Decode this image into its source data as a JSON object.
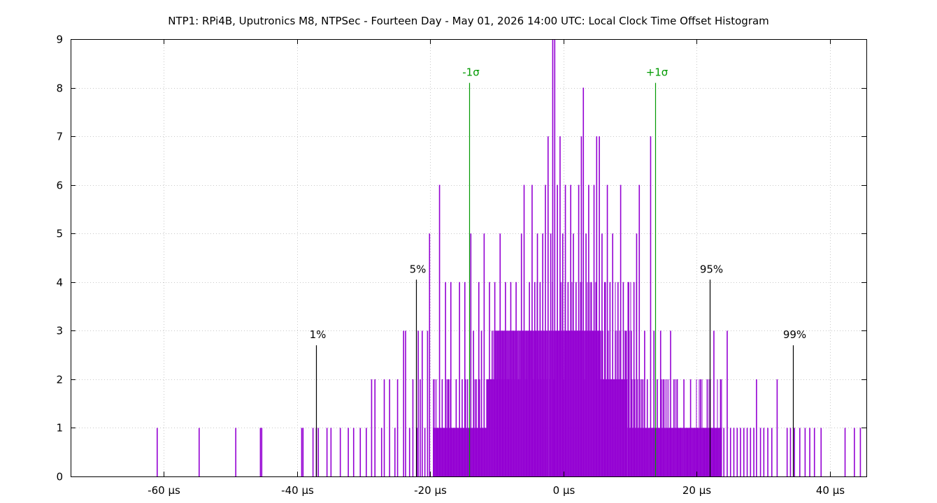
{
  "chart_data": {
    "type": "bar",
    "title": "NTP1: RPi4B, Uputronics M8, NTPSec - Fourteen Day - May 01, 2026 14:00 UTC: Local Clock Time Offset Histogram",
    "xlabel": "",
    "ylabel": "",
    "xlim": [
      -74,
      45.5
    ],
    "ylim": [
      0,
      9
    ],
    "grid": true,
    "legend": "none",
    "bar_color": "#9400d3",
    "x_ticks": [
      {
        "value": -60,
        "label": "-60 µs"
      },
      {
        "value": -40,
        "label": "-40 µs"
      },
      {
        "value": -20,
        "label": "-20 µs"
      },
      {
        "value": 0,
        "label": "0 µs"
      },
      {
        "value": 20,
        "label": "20 µs"
      },
      {
        "value": 40,
        "label": "40 µs"
      }
    ],
    "y_ticks": [
      {
        "value": 0,
        "label": "0"
      },
      {
        "value": 1,
        "label": "1"
      },
      {
        "value": 2,
        "label": "2"
      },
      {
        "value": 3,
        "label": "3"
      },
      {
        "value": 4,
        "label": "4"
      },
      {
        "value": 5,
        "label": "5"
      },
      {
        "value": 6,
        "label": "6"
      },
      {
        "value": 7,
        "label": "7"
      },
      {
        "value": 8,
        "label": "8"
      },
      {
        "value": 9,
        "label": "9"
      }
    ],
    "markers": [
      {
        "label": "1%",
        "x": -37.1,
        "height": 2.7,
        "color": "#000000"
      },
      {
        "label": "5%",
        "x": -22.1,
        "height": 4.05,
        "color": "#000000"
      },
      {
        "label": "-1σ",
        "x": -14.1,
        "height": 8.1,
        "color": "#009900"
      },
      {
        "label": "+1σ",
        "x": 13.8,
        "height": 8.1,
        "color": "#009900"
      },
      {
        "label": "95%",
        "x": 22.0,
        "height": 4.05,
        "color": "#000000"
      },
      {
        "label": "99%",
        "x": 34.5,
        "height": 2.7,
        "color": "#000000"
      }
    ],
    "bars": [
      {
        "x": -61.0,
        "y": 1
      },
      {
        "x": -54.7,
        "y": 1
      },
      {
        "x": -49.2,
        "y": 1
      },
      {
        "x": -45.5,
        "y": 1
      },
      {
        "x": -45.3,
        "y": 1
      },
      {
        "x": -39.3,
        "y": 1
      },
      {
        "x": -39.1,
        "y": 1
      },
      {
        "x": -37.6,
        "y": 1
      },
      {
        "x": -37.1,
        "y": 1
      },
      {
        "x": -36.8,
        "y": 1
      },
      {
        "x": -35.5,
        "y": 1
      },
      {
        "x": -34.9,
        "y": 1
      },
      {
        "x": -33.5,
        "y": 1
      },
      {
        "x": -32.3,
        "y": 1
      },
      {
        "x": -31.5,
        "y": 1
      },
      {
        "x": -30.5,
        "y": 1
      },
      {
        "x": -29.6,
        "y": 1
      },
      {
        "x": -28.8,
        "y": 2
      },
      {
        "x": -28.3,
        "y": 2
      },
      {
        "x": -27.3,
        "y": 1
      },
      {
        "x": -26.9,
        "y": 2
      },
      {
        "x": -26.1,
        "y": 2
      },
      {
        "x": -25.3,
        "y": 1
      },
      {
        "x": -24.9,
        "y": 2
      },
      {
        "x": -24.0,
        "y": 3
      },
      {
        "x": -23.7,
        "y": 3
      },
      {
        "x": -23.1,
        "y": 1
      },
      {
        "x": -22.6,
        "y": 2
      },
      {
        "x": -22.0,
        "y": 1
      },
      {
        "x": -21.8,
        "y": 3
      },
      {
        "x": -21.5,
        "y": 2
      },
      {
        "x": -21.2,
        "y": 3
      },
      {
        "x": -20.8,
        "y": 1
      },
      {
        "x": -20.4,
        "y": 3
      },
      {
        "x": -20.1,
        "y": 5
      },
      {
        "x": -19.5,
        "y": 2
      },
      {
        "x": -19.0,
        "y": 1
      },
      {
        "x": -18.6,
        "y": 6
      },
      {
        "x": -18.2,
        "y": 2
      },
      {
        "x": -17.7,
        "y": 4
      },
      {
        "x": -17.3,
        "y": 2
      },
      {
        "x": -16.9,
        "y": 4
      },
      {
        "x": -16.5,
        "y": 1
      },
      {
        "x": -16.1,
        "y": 2
      },
      {
        "x": -15.6,
        "y": 4
      },
      {
        "x": -15.2,
        "y": 2
      },
      {
        "x": -14.8,
        "y": 4
      },
      {
        "x": -14.4,
        "y": 2
      },
      {
        "x": -13.9,
        "y": 5
      },
      {
        "x": -13.5,
        "y": 3
      },
      {
        "x": -13.1,
        "y": 2
      },
      {
        "x": -12.7,
        "y": 4
      },
      {
        "x": -12.3,
        "y": 3
      },
      {
        "x": -11.9,
        "y": 5
      },
      {
        "x": -11.5,
        "y": 2
      },
      {
        "x": -11.1,
        "y": 4
      },
      {
        "x": -10.7,
        "y": 3
      },
      {
        "x": -10.3,
        "y": 4
      },
      {
        "x": -9.9,
        "y": 2
      },
      {
        "x": -9.5,
        "y": 5
      },
      {
        "x": -9.1,
        "y": 3
      },
      {
        "x": -8.7,
        "y": 4
      },
      {
        "x": -8.3,
        "y": 2
      },
      {
        "x": -7.9,
        "y": 4
      },
      {
        "x": -7.5,
        "y": 3
      },
      {
        "x": -7.1,
        "y": 4
      },
      {
        "x": -6.7,
        "y": 2
      },
      {
        "x": -6.3,
        "y": 5
      },
      {
        "x": -5.9,
        "y": 6
      },
      {
        "x": -5.5,
        "y": 3
      },
      {
        "x": -5.1,
        "y": 4
      },
      {
        "x": -4.7,
        "y": 6
      },
      {
        "x": -4.3,
        "y": 4
      },
      {
        "x": -3.9,
        "y": 5
      },
      {
        "x": -3.5,
        "y": 4
      },
      {
        "x": -3.1,
        "y": 5
      },
      {
        "x": -2.7,
        "y": 6
      },
      {
        "x": -2.3,
        "y": 7
      },
      {
        "x": -1.9,
        "y": 5
      },
      {
        "x": -1.6,
        "y": 9
      },
      {
        "x": -1.3,
        "y": 9
      },
      {
        "x": -0.9,
        "y": 6
      },
      {
        "x": -0.5,
        "y": 7
      },
      {
        "x": -0.1,
        "y": 5
      },
      {
        "x": 0.3,
        "y": 6
      },
      {
        "x": 0.7,
        "y": 4
      },
      {
        "x": 1.1,
        "y": 6
      },
      {
        "x": 1.5,
        "y": 5
      },
      {
        "x": 1.9,
        "y": 4
      },
      {
        "x": 2.3,
        "y": 6
      },
      {
        "x": 2.7,
        "y": 7
      },
      {
        "x": 3.0,
        "y": 8
      },
      {
        "x": 3.4,
        "y": 5
      },
      {
        "x": 3.8,
        "y": 6
      },
      {
        "x": 4.2,
        "y": 4
      },
      {
        "x": 4.6,
        "y": 6
      },
      {
        "x": 5.0,
        "y": 7
      },
      {
        "x": 5.4,
        "y": 7
      },
      {
        "x": 5.8,
        "y": 5
      },
      {
        "x": 6.2,
        "y": 4
      },
      {
        "x": 6.6,
        "y": 6
      },
      {
        "x": 7.0,
        "y": 4
      },
      {
        "x": 7.4,
        "y": 5
      },
      {
        "x": 7.8,
        "y": 3
      },
      {
        "x": 8.2,
        "y": 4
      },
      {
        "x": 8.6,
        "y": 6
      },
      {
        "x": 9.0,
        "y": 4
      },
      {
        "x": 9.4,
        "y": 3
      },
      {
        "x": 9.8,
        "y": 4
      },
      {
        "x": 10.2,
        "y": 3
      },
      {
        "x": 10.6,
        "y": 4
      },
      {
        "x": 11.0,
        "y": 5
      },
      {
        "x": 11.4,
        "y": 6
      },
      {
        "x": 11.8,
        "y": 2
      },
      {
        "x": 12.2,
        "y": 3
      },
      {
        "x": 12.6,
        "y": 2
      },
      {
        "x": 13.1,
        "y": 7
      },
      {
        "x": 13.6,
        "y": 3
      },
      {
        "x": 14.1,
        "y": 2
      },
      {
        "x": 14.6,
        "y": 3
      },
      {
        "x": 15.1,
        "y": 2
      },
      {
        "x": 15.6,
        "y": 1
      },
      {
        "x": 16.1,
        "y": 3
      },
      {
        "x": 16.6,
        "y": 2
      },
      {
        "x": 17.1,
        "y": 2
      },
      {
        "x": 17.6,
        "y": 1
      },
      {
        "x": 18.1,
        "y": 2
      },
      {
        "x": 18.6,
        "y": 1
      },
      {
        "x": 19.1,
        "y": 2
      },
      {
        "x": 19.6,
        "y": 1
      },
      {
        "x": 20.1,
        "y": 1
      },
      {
        "x": 20.6,
        "y": 2
      },
      {
        "x": 21.1,
        "y": 1
      },
      {
        "x": 21.6,
        "y": 2
      },
      {
        "x": 22.1,
        "y": 1
      },
      {
        "x": 22.6,
        "y": 3
      },
      {
        "x": 23.1,
        "y": 1
      },
      {
        "x": 23.6,
        "y": 2
      },
      {
        "x": 24.1,
        "y": 1
      },
      {
        "x": 24.6,
        "y": 3
      },
      {
        "x": 25.1,
        "y": 1
      },
      {
        "x": 25.6,
        "y": 1
      },
      {
        "x": 26.1,
        "y": 1
      },
      {
        "x": 26.6,
        "y": 1
      },
      {
        "x": 27.1,
        "y": 1
      },
      {
        "x": 27.6,
        "y": 1
      },
      {
        "x": 28.1,
        "y": 1
      },
      {
        "x": 28.6,
        "y": 1
      },
      {
        "x": 29.0,
        "y": 2
      },
      {
        "x": 29.6,
        "y": 1
      },
      {
        "x": 30.1,
        "y": 1
      },
      {
        "x": 30.7,
        "y": 1
      },
      {
        "x": 31.3,
        "y": 1
      },
      {
        "x": 32.1,
        "y": 2
      },
      {
        "x": 33.6,
        "y": 1
      },
      {
        "x": 34.1,
        "y": 1
      },
      {
        "x": 34.7,
        "y": 1
      },
      {
        "x": 35.5,
        "y": 1
      },
      {
        "x": 36.3,
        "y": 1
      },
      {
        "x": 37.0,
        "y": 1
      },
      {
        "x": 37.7,
        "y": 1
      },
      {
        "x": 38.7,
        "y": 1
      },
      {
        "x": 42.3,
        "y": 1
      },
      {
        "x": 43.7,
        "y": 1
      },
      {
        "x": 44.6,
        "y": 1
      }
    ]
  }
}
